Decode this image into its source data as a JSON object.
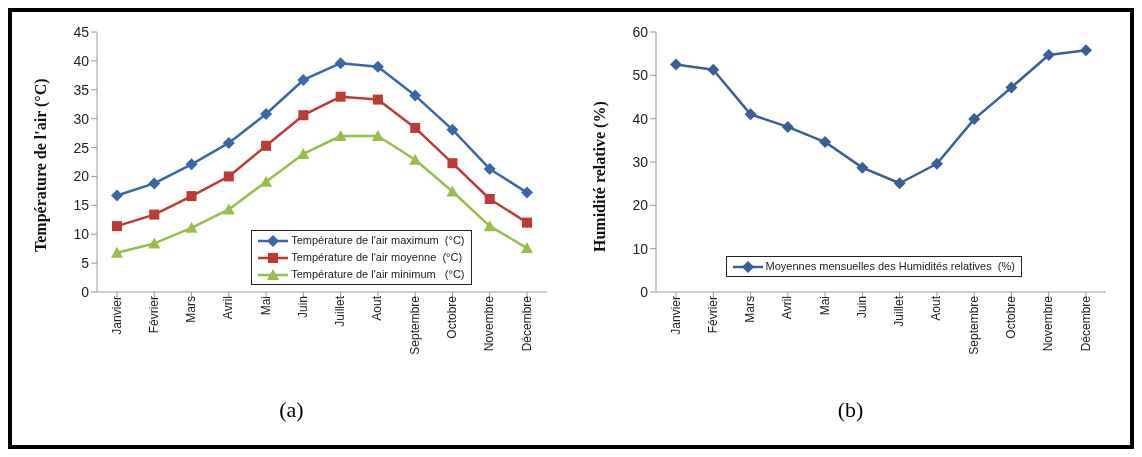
{
  "chart_data": [
    {
      "type": "line",
      "ylabel": "Température de l'air (°C)",
      "categories": [
        "Janvier",
        "Février",
        "Mars",
        "Avril",
        "Mai",
        "Juin",
        "Juillet",
        "Aout",
        "Septembre",
        "Octobre",
        "Novembre",
        "Décembre"
      ],
      "series": [
        {
          "name": "Température de l'air maximum  (°C)",
          "color": "#3a67a8",
          "marker": "diamond",
          "values": [
            16.7,
            18.8,
            22.1,
            25.8,
            30.8,
            36.7,
            39.6,
            39,
            34,
            28.1,
            21.3,
            17.2
          ]
        },
        {
          "name": "Température de l'air moyenne  (°C)",
          "color": "#be3a36",
          "marker": "square",
          "values": [
            11.4,
            13.4,
            16.6,
            20,
            25.3,
            30.6,
            33.8,
            33.3,
            28.4,
            22.3,
            16.1,
            12
          ]
        },
        {
          "name": "Température de l'air minimum   (°C)",
          "color": "#97bd4c",
          "marker": "triangle",
          "values": [
            6.8,
            8.4,
            11.1,
            14.3,
            19.1,
            23.9,
            27,
            27,
            22.9,
            17.4,
            11.4,
            7.6
          ]
        }
      ],
      "ylim": [
        0,
        45
      ],
      "yticks": [
        0,
        5,
        10,
        15,
        20,
        25,
        30,
        35,
        40,
        45
      ],
      "grid": false,
      "legend": "bottom right",
      "annotations": [
        "(a)"
      ]
    },
    {
      "type": "line",
      "ylabel": "Humidité relative (%)",
      "categories": [
        "Janvier",
        "Février",
        "Mars",
        "Avril",
        "Mai",
        "Juin",
        "Juillet",
        "Aout",
        "Septembre",
        "Octobre",
        "Novembre",
        "Décembre"
      ],
      "series": [
        {
          "name": "Moyennes mensuelles des Humidités relatives  (%)",
          "color": "#3a5f96",
          "marker": "diamond",
          "values": [
            52.5,
            51.3,
            41,
            38.1,
            34.6,
            28.7,
            25.1,
            29.6,
            39.9,
            47.2,
            54.7,
            55.8
          ]
        }
      ],
      "ylim": [
        0,
        60
      ],
      "yticks": [
        0,
        10,
        20,
        30,
        40,
        50,
        60
      ],
      "grid": false,
      "legend": "bottom",
      "annotations": [
        "(b)"
      ]
    }
  ]
}
